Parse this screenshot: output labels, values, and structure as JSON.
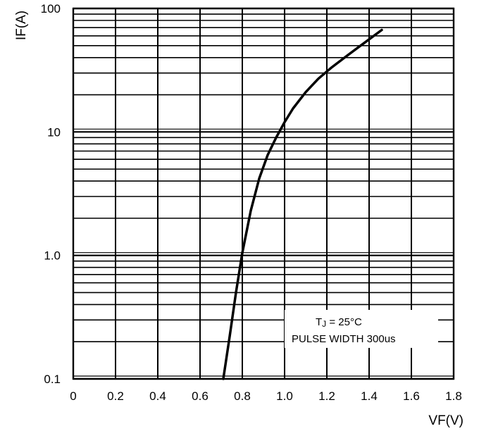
{
  "chart_data": {
    "type": "line",
    "title": "",
    "xlabel": "VF(V)",
    "ylabel": "IF(A)",
    "xlim": [
      0,
      1.8
    ],
    "ylim": [
      0.1,
      100
    ],
    "yscale": "log",
    "grid": true,
    "x_ticks": [
      "0",
      "0.2",
      "0.4",
      "0.6",
      "0.8",
      "1.0",
      "1.2",
      "1.4",
      "1.6",
      "1.8"
    ],
    "y_ticks": [
      {
        "label": "0.1",
        "value": 0.1
      },
      {
        "label": "1.0",
        "value": 1
      },
      {
        "label": "10",
        "value": 10
      },
      {
        "label": "100",
        "value": 100
      }
    ],
    "legend": {
      "placement": "bottom-right",
      "line1_main": "T",
      "line1_sub": "J",
      "line1_rest": " = 25°C",
      "line2": "PULSE WIDTH 300us"
    },
    "series": [
      {
        "x": [
          0.71,
          0.74,
          0.77,
          0.8,
          0.84,
          0.88,
          0.92,
          0.96,
          1.0,
          1.04,
          1.1,
          1.16,
          1.22,
          1.3,
          1.38,
          1.46
        ],
        "y": [
          0.1,
          0.22,
          0.5,
          1.05,
          2.3,
          4.2,
          6.5,
          9.0,
          12.0,
          15.5,
          21.0,
          27.0,
          33.0,
          42.0,
          53.0,
          67.0
        ]
      }
    ]
  }
}
